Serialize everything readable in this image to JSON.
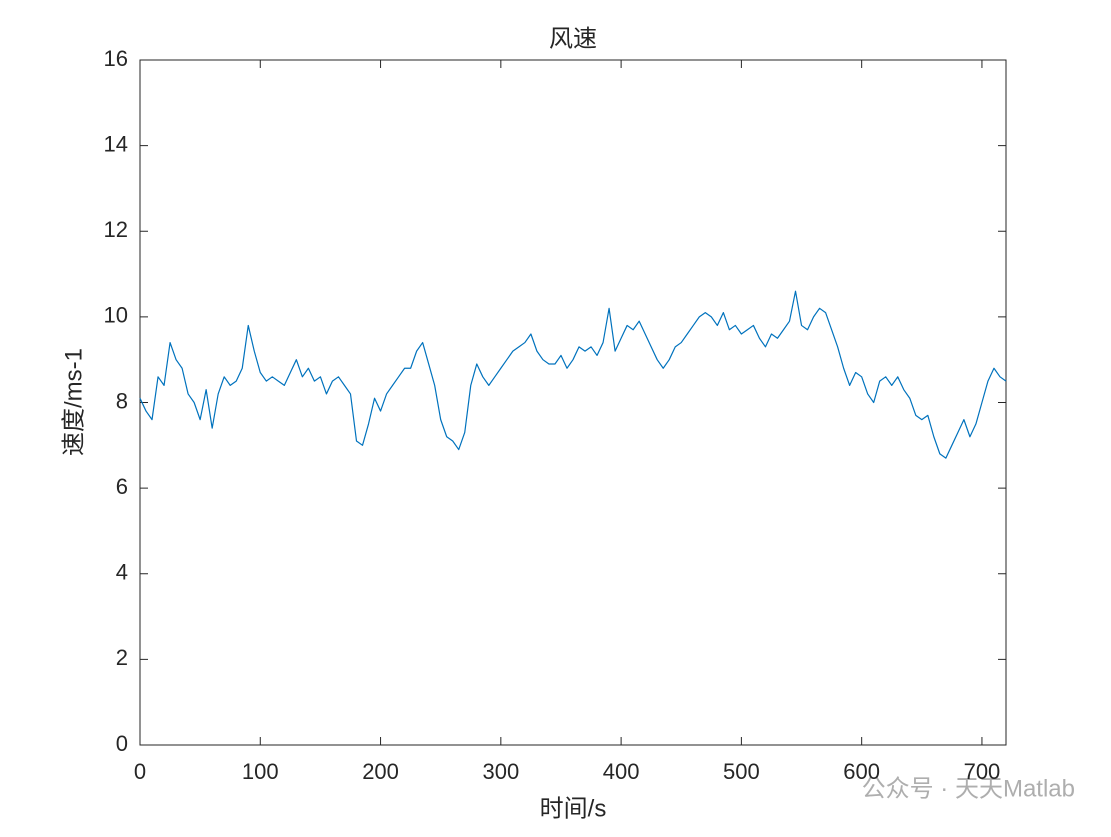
{
  "chart_data": {
    "type": "line",
    "title": "风速",
    "xlabel": "时间/s",
    "ylabel": "速度/ms-1",
    "watermark": "公众号 · 天天Matlab",
    "x": [
      0,
      5,
      10,
      15,
      20,
      25,
      30,
      35,
      40,
      45,
      50,
      55,
      60,
      65,
      70,
      75,
      80,
      85,
      90,
      95,
      100,
      105,
      110,
      115,
      120,
      125,
      130,
      135,
      140,
      145,
      150,
      155,
      160,
      165,
      170,
      175,
      180,
      185,
      190,
      195,
      200,
      205,
      210,
      215,
      220,
      225,
      230,
      235,
      240,
      245,
      250,
      255,
      260,
      265,
      270,
      275,
      280,
      285,
      290,
      295,
      300,
      305,
      310,
      315,
      320,
      325,
      330,
      335,
      340,
      345,
      350,
      355,
      360,
      365,
      370,
      375,
      380,
      385,
      390,
      395,
      400,
      405,
      410,
      415,
      420,
      425,
      430,
      435,
      440,
      445,
      450,
      455,
      460,
      465,
      470,
      475,
      480,
      485,
      490,
      495,
      500,
      505,
      510,
      515,
      520,
      525,
      530,
      535,
      540,
      545,
      550,
      555,
      560,
      565,
      570,
      575,
      580,
      585,
      590,
      595,
      600,
      605,
      610,
      615,
      620,
      625,
      630,
      635,
      640,
      645,
      650,
      655,
      660,
      665,
      670,
      675,
      680,
      685,
      690,
      695,
      700,
      705,
      710,
      715,
      720
    ],
    "series": [
      {
        "name": "风速",
        "color": "#0072bd",
        "values": [
          8.1,
          7.8,
          7.6,
          8.6,
          8.4,
          9.4,
          9.0,
          8.8,
          8.2,
          8.0,
          7.6,
          8.3,
          7.4,
          8.2,
          8.6,
          8.4,
          8.5,
          8.8,
          9.8,
          9.2,
          8.7,
          8.5,
          8.6,
          8.5,
          8.4,
          8.7,
          9.0,
          8.6,
          8.8,
          8.5,
          8.6,
          8.2,
          8.5,
          8.6,
          8.4,
          8.2,
          7.1,
          7.0,
          7.5,
          8.1,
          7.8,
          8.2,
          8.4,
          8.6,
          8.8,
          8.8,
          9.2,
          9.4,
          8.9,
          8.4,
          7.6,
          7.2,
          7.1,
          6.9,
          7.3,
          8.4,
          8.9,
          8.6,
          8.4,
          8.6,
          8.8,
          9.0,
          9.2,
          9.3,
          9.4,
          9.6,
          9.2,
          9.0,
          8.9,
          8.9,
          9.1,
          8.8,
          9.0,
          9.3,
          9.2,
          9.3,
          9.1,
          9.4,
          10.2,
          9.2,
          9.5,
          9.8,
          9.7,
          9.9,
          9.6,
          9.3,
          9.0,
          8.8,
          9.0,
          9.3,
          9.4,
          9.6,
          9.8,
          10.0,
          10.1,
          10.0,
          9.8,
          10.1,
          9.7,
          9.8,
          9.6,
          9.7,
          9.8,
          9.5,
          9.3,
          9.6,
          9.5,
          9.7,
          9.9,
          10.6,
          9.8,
          9.7,
          10.0,
          10.2,
          10.1,
          9.7,
          9.3,
          8.8,
          8.4,
          8.7,
          8.6,
          8.2,
          8.0,
          8.5,
          8.6,
          8.4,
          8.6,
          8.3,
          8.1,
          7.7,
          7.6,
          7.7,
          7.2,
          6.8,
          6.7,
          7.0,
          7.3,
          7.6,
          7.2,
          7.5,
          8.0,
          8.5,
          8.8,
          8.6,
          8.5
        ]
      }
    ],
    "xlim": [
      0,
      720
    ],
    "xticks": [
      0,
      100,
      200,
      300,
      400,
      500,
      600,
      700
    ],
    "ylim": [
      0,
      16
    ],
    "yticks": [
      0,
      2,
      4,
      6,
      8,
      10,
      12,
      14,
      16
    ],
    "grid": false
  }
}
